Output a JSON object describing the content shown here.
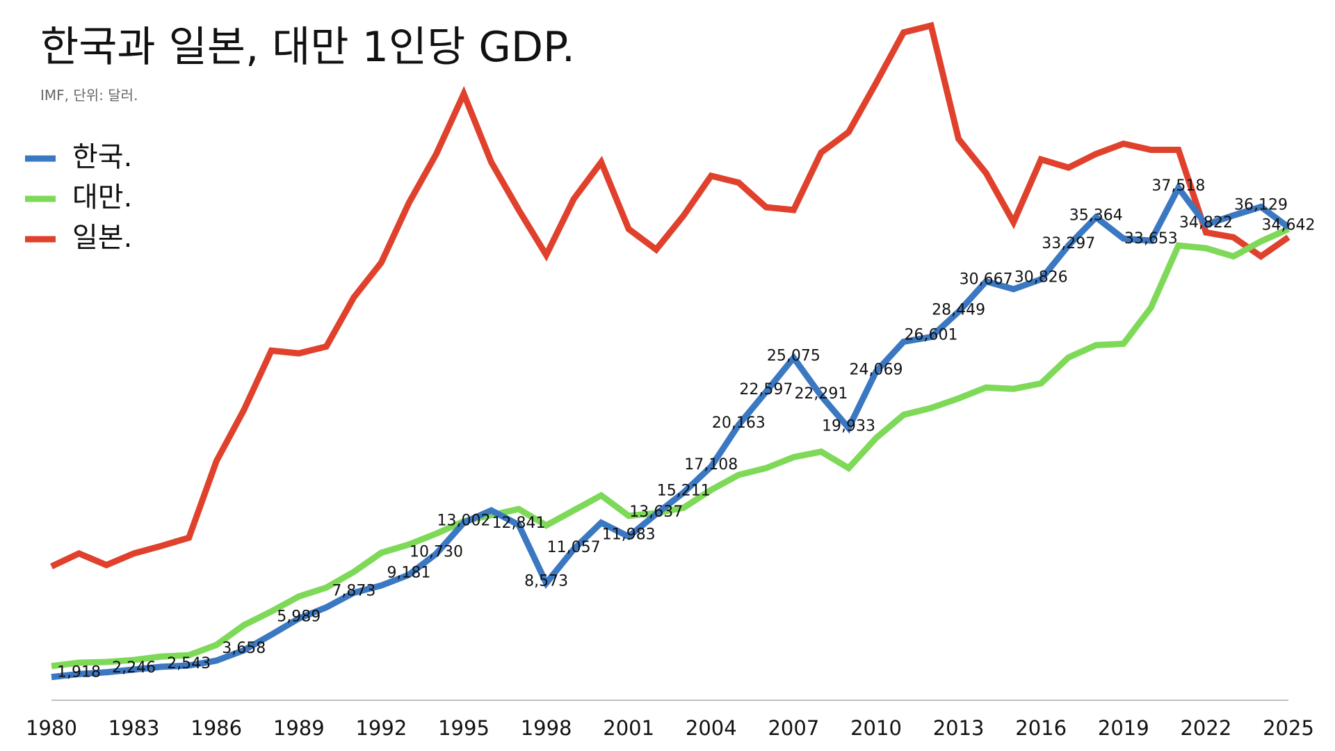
{
  "chart_data": {
    "type": "line",
    "title": "한국과 일본, 대만 1인당 GDP.",
    "subtitle": "IMF, 단위: 달러.",
    "x": [
      1980,
      1981,
      1982,
      1983,
      1984,
      1985,
      1986,
      1987,
      1988,
      1989,
      1990,
      1991,
      1992,
      1993,
      1994,
      1995,
      1996,
      1997,
      1998,
      1999,
      2000,
      2001,
      2002,
      2003,
      2004,
      2005,
      2006,
      2007,
      2008,
      2009,
      2010,
      2011,
      2012,
      2013,
      2014,
      2015,
      2016,
      2017,
      2018,
      2019,
      2020,
      2021,
      2022,
      2023,
      2024,
      2025
    ],
    "xlim": [
      1980,
      2025
    ],
    "xticks": [
      1980,
      1983,
      1986,
      1989,
      1992,
      1995,
      1998,
      2001,
      2004,
      2007,
      2010,
      2013,
      2016,
      2019,
      2022,
      2025
    ],
    "ylim": [
      0,
      50000
    ],
    "legend": "top-left",
    "series": [
      {
        "name": "한국.",
        "color": "#3b78c2",
        "values": [
          1700,
          1918,
          2050,
          2246,
          2450,
          2543,
          2900,
          3658,
          4800,
          5989,
          6800,
          7873,
          8400,
          9181,
          10730,
          13002,
          13900,
          12841,
          8573,
          11057,
          13000,
          11983,
          13637,
          15211,
          17108,
          20163,
          22597,
          25075,
          22291,
          19933,
          24069,
          26250,
          26601,
          28449,
          30667,
          30100,
          30826,
          33297,
          35364,
          33800,
          33653,
          37518,
          34822,
          35500,
          36129,
          34642
        ],
        "value_labels": [
          null,
          "1,918",
          null,
          "2,246",
          null,
          "2,543",
          null,
          "3,658",
          null,
          "5,989",
          null,
          "7,873",
          null,
          "9,181",
          "10,730",
          "13,002",
          null,
          "12,841",
          "8,573",
          "11,057",
          null,
          "11,983",
          "13,637",
          "15,211",
          "17,108",
          "20,163",
          "22,597",
          "25,075",
          "22,291",
          "19,933",
          "24,069",
          null,
          "26,601",
          "28,449",
          "30,667",
          null,
          "30,826",
          "33,297",
          "35,364",
          null,
          "33,653",
          "37,518",
          "34,822",
          null,
          "36,129",
          "34,642"
        ]
      },
      {
        "name": "대만.",
        "color": "#7fd958",
        "values": [
          2500,
          2750,
          2800,
          2950,
          3200,
          3300,
          4050,
          5500,
          6500,
          7600,
          8250,
          9400,
          10800,
          11400,
          12200,
          13100,
          13550,
          14000,
          12800,
          13900,
          15000,
          13500,
          13700,
          14100,
          15400,
          16500,
          17000,
          17800,
          18200,
          17000,
          19200,
          20900,
          21400,
          22100,
          22900,
          22800,
          23200,
          25100,
          26000,
          26100,
          28750,
          33300,
          33100,
          32500,
          33600,
          34500
        ]
      },
      {
        "name": "일본.",
        "color": "#e0412c",
        "values": [
          9800,
          10750,
          9900,
          10750,
          11300,
          11900,
          17500,
          21250,
          25600,
          25400,
          25900,
          29500,
          32050,
          36400,
          40000,
          44400,
          39400,
          35900,
          32600,
          36700,
          39400,
          34500,
          33000,
          35500,
          38400,
          37900,
          36100,
          35900,
          40100,
          41600,
          45200,
          48900,
          49400,
          41100,
          38600,
          35000,
          39600,
          39000,
          40000,
          40750,
          40300,
          40300,
          34250,
          33900,
          32500,
          33900
        ]
      }
    ]
  }
}
